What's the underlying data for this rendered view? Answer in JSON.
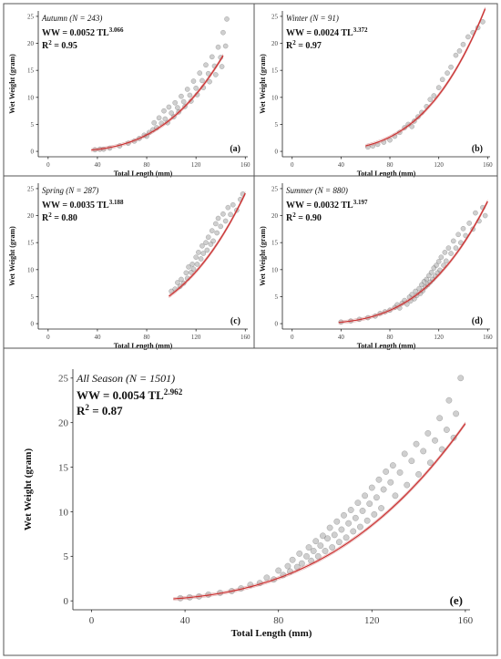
{
  "chart_data": [
    {
      "type": "scatter",
      "panel_label": "(a)",
      "title": "Autumn (N = 243)",
      "equation": {
        "prefix": "WW = 0.0052 TL",
        "exponent": "3.066"
      },
      "r2": {
        "prefix": "R",
        "sup": "2",
        "value": " = 0.95"
      },
      "xlabel": "Total Length (mm)",
      "ylabel": "Wet Weight (gram)",
      "xlim": [
        -8,
        162
      ],
      "ylim": [
        -1,
        26
      ],
      "xticks": [
        0,
        40,
        80,
        120,
        160
      ],
      "yticks": [
        0,
        5,
        10,
        15,
        20,
        25
      ],
      "fit": {
        "a": 0.0052,
        "b": 3.066,
        "x_range": [
          35,
          142
        ]
      },
      "point_color": "#888888",
      "fit_color": "#cc3333",
      "points": [
        [
          38,
          0.3
        ],
        [
          42,
          0.4
        ],
        [
          45,
          0.4
        ],
        [
          50,
          0.6
        ],
        [
          58,
          1.0
        ],
        [
          65,
          1.5
        ],
        [
          70,
          1.9
        ],
        [
          74,
          2.4
        ],
        [
          78,
          3.0
        ],
        [
          80,
          2.8
        ],
        [
          82,
          3.5
        ],
        [
          85,
          4.0
        ],
        [
          86,
          5.3
        ],
        [
          88,
          4.4
        ],
        [
          90,
          6.2
        ],
        [
          92,
          5.2
        ],
        [
          94,
          7.5
        ],
        [
          95,
          6.0
        ],
        [
          97,
          5.3
        ],
        [
          98,
          8.2
        ],
        [
          100,
          7.1
        ],
        [
          102,
          6.4
        ],
        [
          103,
          9.0
        ],
        [
          105,
          8.1
        ],
        [
          106,
          7.3
        ],
        [
          108,
          10.2
        ],
        [
          110,
          9.2
        ],
        [
          111,
          8.3
        ],
        [
          113,
          11.5
        ],
        [
          115,
          10.4
        ],
        [
          116,
          9.3
        ],
        [
          118,
          13.0
        ],
        [
          120,
          11.7
        ],
        [
          121,
          10.5
        ],
        [
          123,
          14.5
        ],
        [
          125,
          13.1
        ],
        [
          126,
          11.8
        ],
        [
          128,
          16.0
        ],
        [
          130,
          14.4
        ],
        [
          131,
          12.9
        ],
        [
          133,
          17.5
        ],
        [
          135,
          15.8
        ],
        [
          136,
          14.2
        ],
        [
          138,
          19.3
        ],
        [
          140,
          17.4
        ],
        [
          141,
          15.7
        ],
        [
          142,
          22.0
        ],
        [
          144,
          19.5
        ],
        [
          145,
          24.5
        ]
      ]
    },
    {
      "type": "scatter",
      "panel_label": "(b)",
      "title": "Winter (N = 91)",
      "equation": {
        "prefix": "WW = 0.0024 TL",
        "exponent": "3.372"
      },
      "r2": {
        "prefix": "R",
        "sup": "2",
        "value": " = 0.97"
      },
      "xlabel": "Total Length (mm)",
      "ylabel": "Wet Weight (gram)",
      "xlim": [
        -8,
        162
      ],
      "ylim": [
        -1,
        26
      ],
      "xticks": [
        0,
        40,
        80,
        120,
        160
      ],
      "yticks": [
        0,
        5,
        10,
        15,
        20,
        25
      ],
      "fit": {
        "a": 0.0024,
        "b": 3.372,
        "x_range": [
          60,
          158
        ]
      },
      "point_color": "#888888",
      "fit_color": "#cc3333",
      "points": [
        [
          62,
          0.8
        ],
        [
          66,
          1.0
        ],
        [
          70,
          1.3
        ],
        [
          75,
          1.7
        ],
        [
          80,
          2.1
        ],
        [
          84,
          2.8
        ],
        [
          88,
          3.5
        ],
        [
          92,
          4.4
        ],
        [
          95,
          5.0
        ],
        [
          98,
          4.6
        ],
        [
          100,
          5.6
        ],
        [
          103,
          6.4
        ],
        [
          106,
          7.2
        ],
        [
          110,
          8.3
        ],
        [
          113,
          9.6
        ],
        [
          116,
          10.3
        ],
        [
          120,
          11.8
        ],
        [
          123,
          13.3
        ],
        [
          127,
          14.5
        ],
        [
          130,
          15.6
        ],
        [
          134,
          17.8
        ],
        [
          137,
          18.6
        ],
        [
          140,
          19.8
        ],
        [
          144,
          21.2
        ],
        [
          148,
          22.0
        ],
        [
          152,
          22.9
        ],
        [
          156,
          24.0
        ]
      ]
    },
    {
      "type": "scatter",
      "panel_label": "(c)",
      "title": "Spring (N = 287)",
      "equation": {
        "prefix": "WW = 0.0035 TL",
        "exponent": "3.188"
      },
      "r2": {
        "prefix": "R",
        "sup": "2",
        "value": " = 0.80"
      },
      "xlabel": "Total Length (mm)",
      "ylabel": "Wet Weight (gram)",
      "xlim": [
        -8,
        162
      ],
      "ylim": [
        -1,
        26
      ],
      "xticks": [
        0,
        40,
        80,
        120,
        160
      ],
      "yticks": [
        0,
        5,
        10,
        15,
        20,
        25
      ],
      "fit": {
        "a": 0.0035,
        "b": 3.188,
        "x_range": [
          98,
          160
        ]
      },
      "point_color": "#888888",
      "fit_color": "#cc3333",
      "points": [
        [
          100,
          6.0
        ],
        [
          103,
          6.4
        ],
        [
          105,
          7.6
        ],
        [
          107,
          6.9
        ],
        [
          108,
          8.2
        ],
        [
          110,
          7.5
        ],
        [
          112,
          9.4
        ],
        [
          113,
          8.4
        ],
        [
          114,
          10.5
        ],
        [
          116,
          9.5
        ],
        [
          117,
          11.0
        ],
        [
          118,
          10.1
        ],
        [
          120,
          12.3
        ],
        [
          121,
          11.0
        ],
        [
          122,
          13.2
        ],
        [
          124,
          12.0
        ],
        [
          125,
          14.4
        ],
        [
          126,
          13.0
        ],
        [
          128,
          15.0
        ],
        [
          129,
          13.6
        ],
        [
          130,
          16.0
        ],
        [
          132,
          14.7
        ],
        [
          133,
          17.2
        ],
        [
          134,
          15.3
        ],
        [
          136,
          18.5
        ],
        [
          137,
          16.8
        ],
        [
          138,
          19.5
        ],
        [
          140,
          18.0
        ],
        [
          142,
          20.3
        ],
        [
          144,
          19.0
        ],
        [
          146,
          21.5
        ],
        [
          148,
          20.2
        ],
        [
          150,
          22.0
        ],
        [
          153,
          21.0
        ],
        [
          156,
          23.0
        ],
        [
          158,
          24.0
        ]
      ]
    },
    {
      "type": "scatter",
      "panel_label": "(d)",
      "title": "Summer (N = 880)",
      "equation": {
        "prefix": "WW = 0.0032 TL",
        "exponent": "3.197"
      },
      "r2": {
        "prefix": "R",
        "sup": "2",
        "value": " = 0.90"
      },
      "xlabel": "Total Length (mm)",
      "ylabel": "Wet Weight (gram)",
      "xlim": [
        -8,
        162
      ],
      "ylim": [
        -1,
        26
      ],
      "xticks": [
        0,
        40,
        80,
        120,
        160
      ],
      "yticks": [
        0,
        5,
        10,
        15,
        20,
        25
      ],
      "fit": {
        "a": 0.0032,
        "b": 3.197,
        "x_range": [
          38,
          160
        ]
      },
      "point_color": "#888888",
      "fit_color": "#cc3333",
      "points": [
        [
          40,
          0.3
        ],
        [
          48,
          0.5
        ],
        [
          55,
          0.8
        ],
        [
          62,
          1.1
        ],
        [
          68,
          1.4
        ],
        [
          72,
          1.9
        ],
        [
          76,
          2.2
        ],
        [
          80,
          2.5
        ],
        [
          84,
          3.0
        ],
        [
          86,
          3.5
        ],
        [
          88,
          2.9
        ],
        [
          90,
          3.8
        ],
        [
          92,
          4.3
        ],
        [
          94,
          3.6
        ],
        [
          96,
          4.9
        ],
        [
          97,
          4.2
        ],
        [
          98,
          5.4
        ],
        [
          100,
          4.6
        ],
        [
          101,
          6.0
        ],
        [
          102,
          5.2
        ],
        [
          104,
          6.5
        ],
        [
          105,
          5.6
        ],
        [
          106,
          7.2
        ],
        [
          107,
          6.1
        ],
        [
          108,
          7.8
        ],
        [
          109,
          6.8
        ],
        [
          110,
          8.2
        ],
        [
          111,
          7.2
        ],
        [
          112,
          8.9
        ],
        [
          113,
          7.7
        ],
        [
          114,
          9.5
        ],
        [
          115,
          8.2
        ],
        [
          116,
          10.3
        ],
        [
          117,
          8.8
        ],
        [
          118,
          10.8
        ],
        [
          119,
          9.4
        ],
        [
          120,
          11.5
        ],
        [
          121,
          9.9
        ],
        [
          122,
          12.3
        ],
        [
          124,
          10.8
        ],
        [
          125,
          13.2
        ],
        [
          126,
          11.6
        ],
        [
          128,
          14.0
        ],
        [
          130,
          13.0
        ],
        [
          132,
          15.3
        ],
        [
          134,
          14.0
        ],
        [
          136,
          16.5
        ],
        [
          138,
          15.0
        ],
        [
          140,
          17.6
        ],
        [
          142,
          16.3
        ],
        [
          145,
          18.6
        ],
        [
          148,
          17.5
        ],
        [
          150,
          20.5
        ],
        [
          153,
          19.0
        ],
        [
          156,
          21.5
        ],
        [
          158,
          20.0
        ]
      ]
    },
    {
      "type": "scatter",
      "panel_label": "(e)",
      "title": "All Season (N = 1501)",
      "equation": {
        "prefix": "WW = 0.0054 TL",
        "exponent": "2.962"
      },
      "r2": {
        "prefix": "R",
        "sup": "2",
        "value": " = 0.87"
      },
      "xlabel": "Total Length (mm)",
      "ylabel": "Wet Weight (gram)",
      "xlim": [
        -8,
        162
      ],
      "ylim": [
        -1,
        26
      ],
      "xticks": [
        0,
        40,
        80,
        120,
        160
      ],
      "yticks": [
        0,
        5,
        10,
        15,
        20,
        25
      ],
      "fit": {
        "a": 0.0054,
        "b": 2.962,
        "x_range": [
          35,
          160
        ]
      },
      "point_color": "#888888",
      "fit_color": "#cc3333",
      "points": [
        [
          38,
          0.3
        ],
        [
          42,
          0.4
        ],
        [
          46,
          0.5
        ],
        [
          50,
          0.7
        ],
        [
          55,
          0.9
        ],
        [
          60,
          1.1
        ],
        [
          64,
          1.4
        ],
        [
          68,
          1.8
        ],
        [
          72,
          2.0
        ],
        [
          75,
          2.6
        ],
        [
          78,
          2.4
        ],
        [
          80,
          3.4
        ],
        [
          82,
          2.9
        ],
        [
          84,
          3.9
        ],
        [
          85,
          3.3
        ],
        [
          86,
          4.6
        ],
        [
          88,
          3.8
        ],
        [
          89,
          5.3
        ],
        [
          90,
          4.2
        ],
        [
          92,
          5.0
        ],
        [
          93,
          6.0
        ],
        [
          94,
          4.5
        ],
        [
          95,
          5.6
        ],
        [
          96,
          6.7
        ],
        [
          97,
          5.0
        ],
        [
          98,
          6.2
        ],
        [
          99,
          7.3
        ],
        [
          100,
          5.6
        ],
        [
          101,
          7.0
        ],
        [
          102,
          8.2
        ],
        [
          103,
          6.0
        ],
        [
          104,
          7.4
        ],
        [
          105,
          8.9
        ],
        [
          106,
          6.6
        ],
        [
          107,
          8.0
        ],
        [
          108,
          9.6
        ],
        [
          109,
          7.1
        ],
        [
          110,
          8.7
        ],
        [
          111,
          10.2
        ],
        [
          112,
          7.8
        ],
        [
          113,
          9.3
        ],
        [
          114,
          11.0
        ],
        [
          115,
          8.3
        ],
        [
          116,
          10.1
        ],
        [
          117,
          11.8
        ],
        [
          118,
          9.0
        ],
        [
          119,
          10.9
        ],
        [
          120,
          12.7
        ],
        [
          121,
          9.7
        ],
        [
          122,
          11.6
        ],
        [
          123,
          13.6
        ],
        [
          124,
          10.4
        ],
        [
          125,
          12.5
        ],
        [
          126,
          14.5
        ],
        [
          128,
          13.3
        ],
        [
          129,
          15.2
        ],
        [
          130,
          11.8
        ],
        [
          132,
          14.4
        ],
        [
          134,
          16.5
        ],
        [
          135,
          13.0
        ],
        [
          137,
          15.7
        ],
        [
          139,
          17.6
        ],
        [
          140,
          14.2
        ],
        [
          142,
          16.8
        ],
        [
          144,
          18.8
        ],
        [
          145,
          15.5
        ],
        [
          147,
          18.0
        ],
        [
          149,
          20.5
        ],
        [
          150,
          17.0
        ],
        [
          152,
          19.2
        ],
        [
          153,
          22.5
        ],
        [
          155,
          18.3
        ],
        [
          156,
          21.0
        ],
        [
          158,
          25.0
        ]
      ]
    }
  ]
}
